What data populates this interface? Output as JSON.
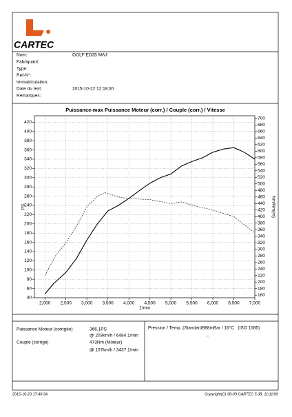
{
  "header": {
    "logo": "CARTEC"
  },
  "info": [
    {
      "label": "Nom:",
      "value": "GOLF ED35 MAJ"
    },
    {
      "label": "Fabriquant:"
    },
    {
      "label": "Type:"
    },
    {
      "label": "Ref-N°:"
    },
    {
      "label": "Immatriculation:"
    },
    {
      "label": "Date du test:",
      "value": "2015-10-22 12:18:30"
    },
    {
      "label": "Remarques:"
    }
  ],
  "chart_data": {
    "type": "line",
    "title": "Puissance-max Puissance Moteur (corr.) / Couple (corr.) / Vitesse",
    "x_label": "1/min",
    "y_label": "PS",
    "y2_label": "Nm/Nm(m)",
    "xlim": [
      1750,
      7000
    ],
    "xticks": [
      {
        "value": 2000,
        "label": "2,000"
      },
      {
        "value": 2500,
        "label": "2,500"
      },
      {
        "value": 3000,
        "label": "3,000"
      },
      {
        "value": 3500,
        "label": "3,500"
      },
      {
        "value": 4000,
        "label": "4,000"
      },
      {
        "value": 4500,
        "label": "4,500"
      },
      {
        "value": 5000,
        "label": "5,000"
      },
      {
        "value": 5500,
        "label": "5,500"
      },
      {
        "value": 6000,
        "label": "6,000"
      },
      {
        "value": 6500,
        "label": "6,500"
      },
      {
        "value": 7000,
        "label": "7,000"
      }
    ],
    "ylim": [
      40,
      434
    ],
    "yticks": [
      40,
      60,
      80,
      100,
      120,
      140,
      160,
      180,
      200,
      220,
      240,
      260,
      280,
      300,
      320,
      340,
      360,
      380,
      400,
      420
    ],
    "y2lim": [
      152,
      708
    ],
    "y2ticks": [
      160,
      180,
      200,
      220,
      240,
      260,
      280,
      300,
      320,
      340,
      360,
      380,
      400,
      420,
      440,
      460,
      480,
      500,
      520,
      540,
      560,
      580,
      600,
      620,
      640,
      660,
      680,
      700
    ],
    "grid": true,
    "series": [
      {
        "color": "#000000",
        "style": "solid",
        "axis": "y",
        "x": [
          2000,
          2200,
          2500,
          2750,
          3000,
          3250,
          3500,
          3750,
          4000,
          4250,
          4500,
          4750,
          5000,
          5250,
          5500,
          5750,
          6000,
          6250,
          6500,
          6750,
          7000
        ],
        "values": [
          48,
          70,
          95,
          125,
          165,
          200,
          228,
          240,
          255,
          272,
          288,
          300,
          308,
          325,
          335,
          343,
          355,
          362,
          365,
          355,
          340
        ]
      },
      {
        "color": "#000000",
        "style": "dashed",
        "axis": "y2",
        "x": [
          2000,
          2250,
          2500,
          2750,
          3000,
          3250,
          3437,
          3750,
          4000,
          4500,
          5000,
          5250,
          5500,
          6000,
          6500,
          7000
        ],
        "values": [
          220,
          280,
          320,
          370,
          430,
          462,
          473,
          460,
          455,
          452,
          440,
          445,
          435,
          420,
          400,
          350
        ]
      }
    ]
  },
  "results": {
    "power_label": "Puissance Moteur (corrigée)",
    "power_value": "366.1PS",
    "power_at": "@ 203km/h / 6484 1/min",
    "torque_label": "Couple (corrigé)",
    "torque_value": "473Nm (Moteur)",
    "torque_at": "@ 107km/h / 3437 1/min",
    "conditions": "Pression / Temp. (Standard988mBar / 16°C   (ISO 1585)",
    "conditions_value": "--"
  },
  "footer": {
    "date": "2015-10-23 17:40:34",
    "copyright": "Copyright(C) 98-09 CARTEC 5.38, 11/11/09"
  }
}
